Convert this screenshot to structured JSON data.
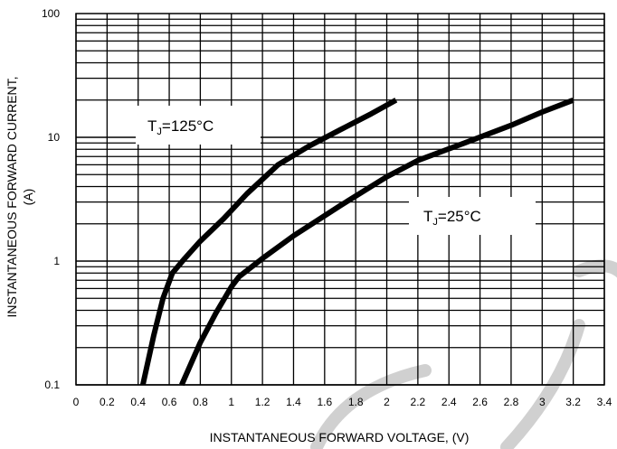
{
  "chart_data": {
    "type": "line",
    "title": "",
    "xlabel": "INSTANTANEOUS FORWARD VOLTAGE,  (V)",
    "ylabel": "INSTANTANEOUS FORWARD CURRENT, (A)",
    "ylabel_lines": [
      "INSTANTANEOUS FORWARD CURRENT,",
      "(A)"
    ],
    "xlim": [
      0,
      3.4
    ],
    "ylim": [
      0.1,
      100
    ],
    "yscale": "log",
    "grid": true,
    "x_ticks": [
      "0",
      "0.2",
      "0.4",
      "0.6",
      "0.8",
      "1",
      "1.2",
      "1.4",
      "1.6",
      "1.8",
      "2",
      "2.2",
      "2.4",
      "2.6",
      "2.8",
      "3",
      "3.2",
      "3.4"
    ],
    "y_ticks": [
      "0.1",
      "1",
      "10",
      "100"
    ],
    "series": [
      {
        "name": "TJ=125°C",
        "label_main": "T",
        "label_sub": "J",
        "label_rest": "=125°C",
        "x": [
          0.43,
          0.5,
          0.56,
          0.62,
          0.7,
          0.8,
          0.95,
          1.1,
          1.3,
          1.5,
          1.7,
          1.9,
          2.06
        ],
        "y": [
          0.1,
          0.25,
          0.5,
          0.8,
          1.05,
          1.45,
          2.2,
          3.5,
          6,
          8.5,
          11.5,
          15.5,
          20
        ]
      },
      {
        "name": "TJ=25°C",
        "label_main": "T",
        "label_sub": "J",
        "label_rest": "=25°C",
        "x": [
          0.68,
          0.8,
          0.9,
          1.0,
          1.05,
          1.2,
          1.4,
          1.7,
          2.0,
          2.2,
          2.5,
          2.8,
          3.0,
          3.2
        ],
        "y": [
          0.1,
          0.22,
          0.38,
          0.62,
          0.75,
          1.05,
          1.6,
          2.8,
          4.8,
          6.5,
          9,
          12.5,
          16,
          20
        ]
      }
    ]
  }
}
